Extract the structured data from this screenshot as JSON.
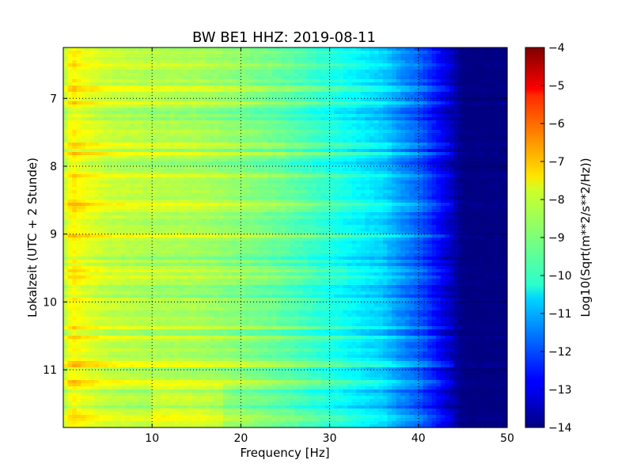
{
  "chart_data": {
    "type": "heatmap",
    "title": "BW BE1 HHZ: 2019-08-11",
    "xlabel": "Frequency [Hz]",
    "ylabel": "Lokalzeit (UTC + 2 Stunde)",
    "xlim": [
      0,
      50
    ],
    "ylim": [
      6.25,
      11.85
    ],
    "y_inverted": true,
    "grid": true,
    "x_ticks": [
      10,
      20,
      30,
      40,
      50
    ],
    "x_tick_labels": [
      "10",
      "20",
      "30",
      "40",
      "50"
    ],
    "y_ticks": [
      7,
      8,
      9,
      10,
      11
    ],
    "y_tick_labels": [
      "7",
      "8",
      "9",
      "10",
      "11"
    ],
    "colormap": "jet",
    "colorbar": {
      "label": "Log10(Sqrt(m**2/s**2/Hz))",
      "range": [
        -14,
        -4
      ],
      "ticks": [
        -4,
        -5,
        -6,
        -7,
        -8,
        -9,
        -10,
        -11,
        -12,
        -13,
        -14
      ],
      "tick_labels": [
        "−4",
        "−5",
        "−6",
        "−7",
        "−8",
        "−9",
        "−10",
        "−11",
        "−12",
        "−13",
        "−14"
      ]
    },
    "approx_spectrum_profile": {
      "frequency_hz": [
        0,
        1,
        2,
        5,
        10,
        15,
        20,
        25,
        30,
        33,
        36,
        38,
        40,
        42,
        44,
        45,
        50
      ],
      "log10_amplitude": [
        -8.5,
        -7.6,
        -7.9,
        -8.3,
        -8.5,
        -8.6,
        -8.9,
        -9.3,
        -9.9,
        -10.3,
        -10.7,
        -11.3,
        -11.8,
        -12.6,
        -13.5,
        -14,
        -14
      ]
    }
  }
}
